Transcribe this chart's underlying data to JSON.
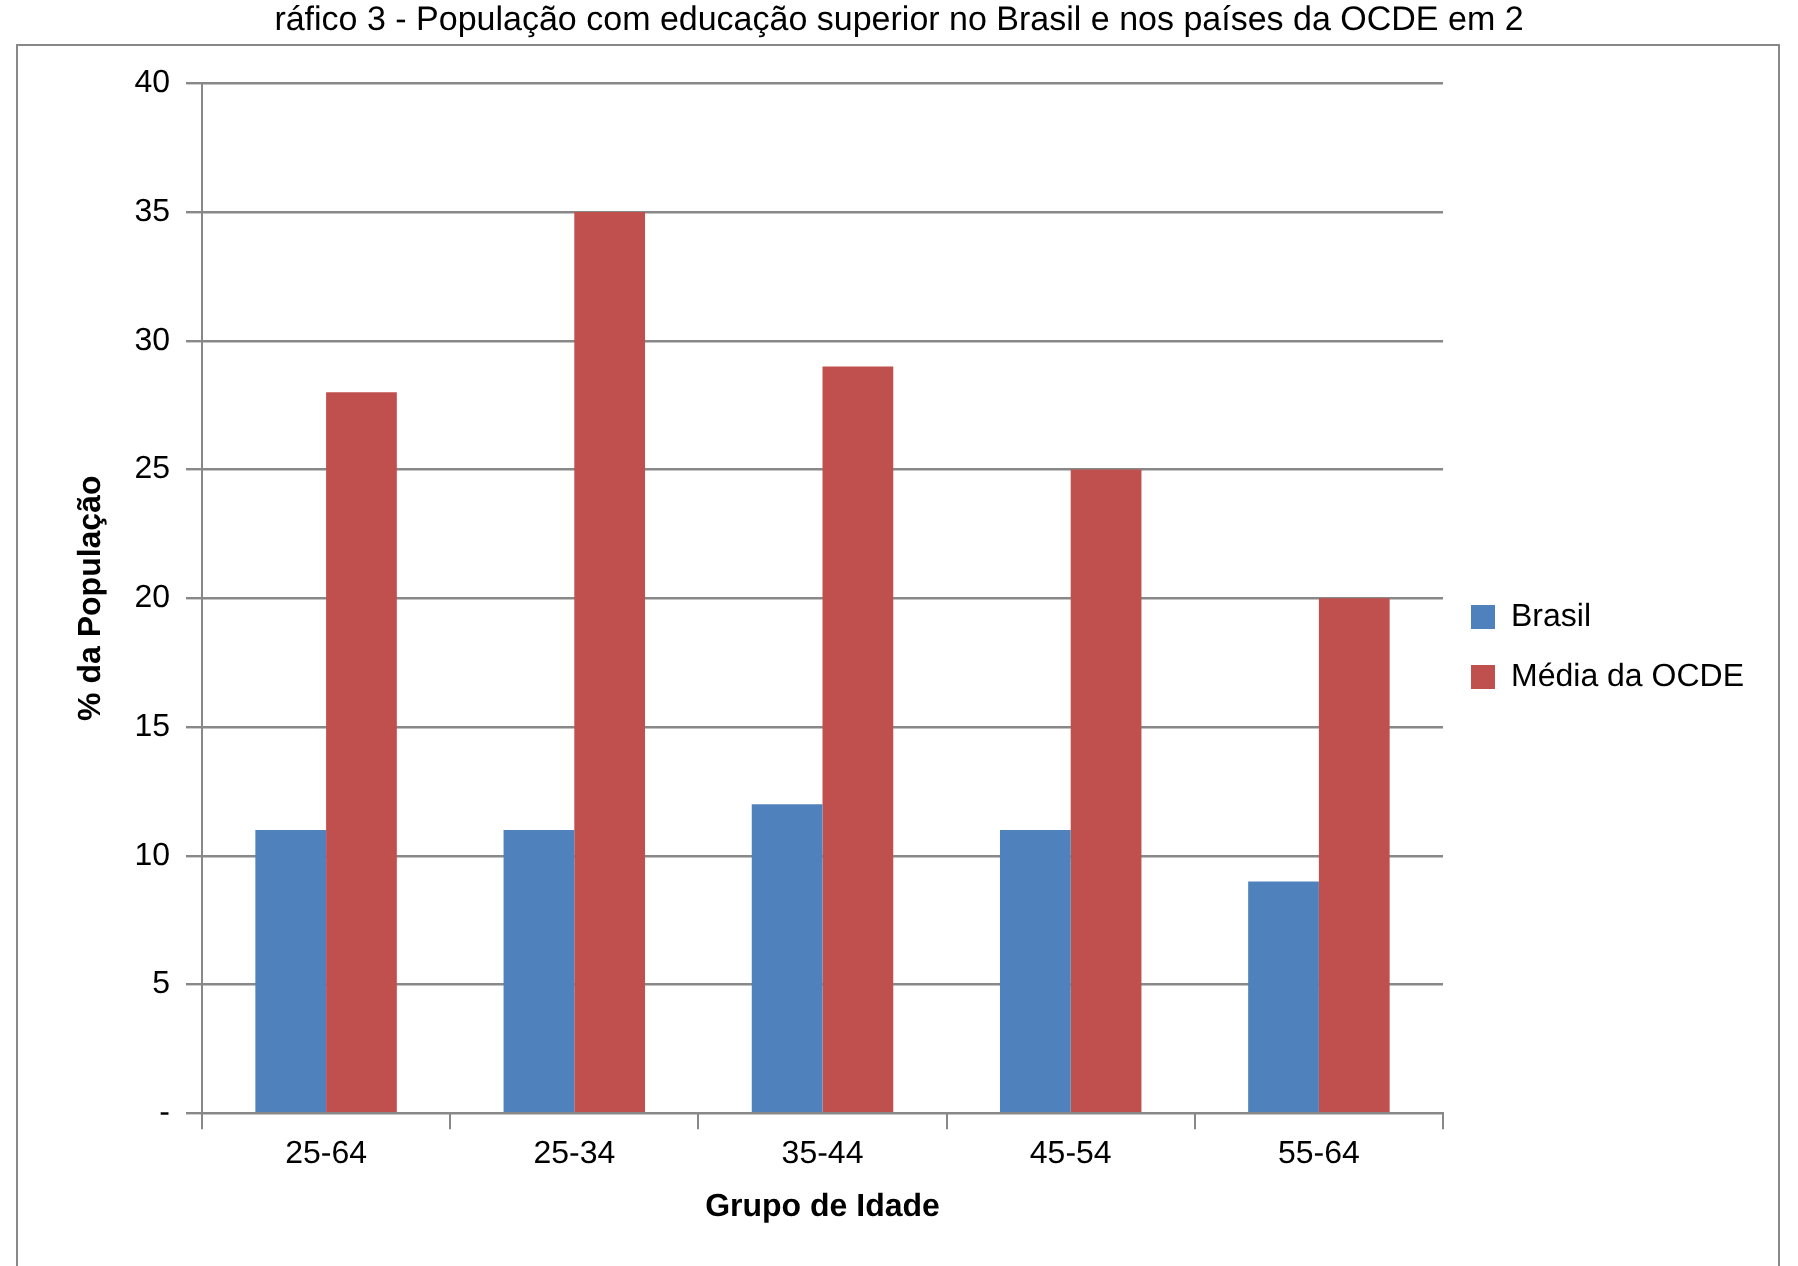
{
  "chart_data": {
    "type": "bar",
    "title": "ráfico 3 - População com educação superior no Brasil e nos países da OCDE em 2",
    "xlabel": "Grupo de Idade",
    "ylabel": "% da População",
    "categories": [
      "25-64",
      "25-34",
      "35-44",
      "45-54",
      "55-64"
    ],
    "series": [
      {
        "name": "Brasil",
        "color": "#4f81bd",
        "values": [
          11,
          11,
          12,
          11,
          9
        ]
      },
      {
        "name": "Média da OCDE",
        "color": "#c0504d",
        "values": [
          28,
          35,
          29,
          25,
          20
        ]
      }
    ],
    "ylim": [
      0,
      40
    ],
    "yticks": [
      {
        "value": 0,
        "label": "-"
      },
      5,
      10,
      15,
      20,
      25,
      30,
      35,
      40
    ],
    "grid": "y",
    "legend": "right"
  }
}
